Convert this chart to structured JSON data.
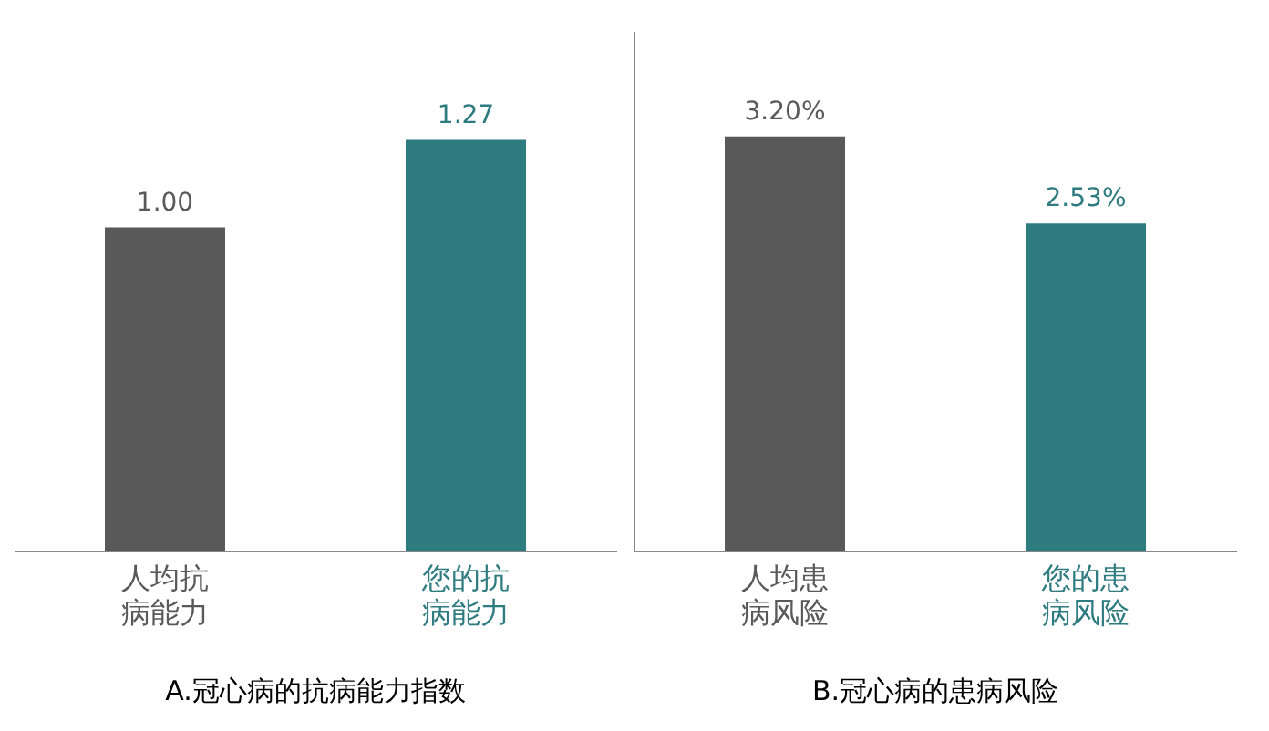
{
  "chart_data": [
    {
      "type": "bar",
      "title": "A.冠心病的抗病能力指数",
      "categories": [
        "人均抗病能力",
        "您的抗病能力"
      ],
      "values": [
        1.0,
        1.27
      ],
      "value_labels": [
        "1.00",
        "1.27"
      ],
      "colors": [
        "#595959",
        "#2e7b80"
      ],
      "grid": false,
      "legend": false
    },
    {
      "type": "bar",
      "title": "B.冠心病的患病风险",
      "categories": [
        "人均患病风险",
        "您的患病风险"
      ],
      "values": [
        3.2,
        2.53
      ],
      "value_labels": [
        "3.20%",
        "2.53%"
      ],
      "colors": [
        "#595959",
        "#2e7b80"
      ],
      "grid": false,
      "legend": false
    }
  ]
}
